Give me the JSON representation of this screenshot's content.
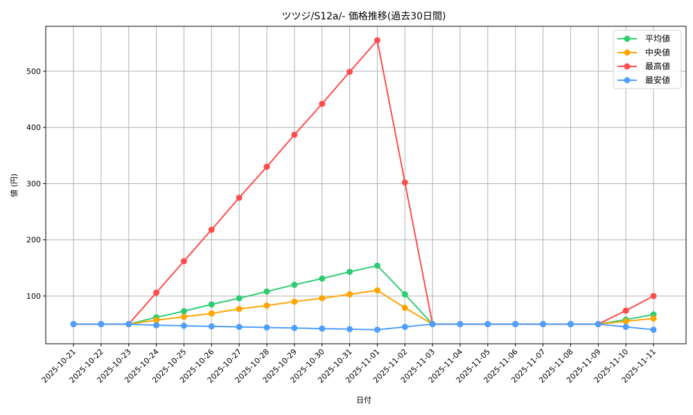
{
  "chart_data": {
    "type": "line",
    "title": "ツツジ/S12a/- 価格推移(過去30日間)",
    "xlabel": "日付",
    "ylabel": "値 (円)",
    "ylim": [
      15,
      580
    ],
    "yticks": [
      100,
      200,
      300,
      400,
      500
    ],
    "grid": true,
    "legend_position": "upper right",
    "categories": [
      "2025-10-21",
      "2025-10-22",
      "2025-10-23",
      "2025-10-24",
      "2025-10-25",
      "2025-10-26",
      "2025-10-27",
      "2025-10-28",
      "2025-10-29",
      "2025-10-30",
      "2025-10-31",
      "2025-11-01",
      "2025-11-02",
      "2025-11-03",
      "2025-11-04",
      "2025-11-05",
      "2025-11-06",
      "2025-11-07",
      "2025-11-08",
      "2025-11-09",
      "2025-11-10",
      "2025-11-11"
    ],
    "series": [
      {
        "name": "平均値",
        "color": "#2ecc71",
        "values": [
          50,
          50,
          50,
          62,
          73,
          85,
          96,
          108,
          120,
          131,
          143,
          154,
          103,
          50,
          50,
          50,
          50,
          50,
          50,
          50,
          58,
          67
        ]
      },
      {
        "name": "中央値",
        "color": "#ffa500",
        "values": [
          50,
          50,
          50,
          57,
          63,
          69,
          77,
          83,
          90,
          96,
          103,
          110,
          79,
          50,
          50,
          50,
          50,
          50,
          50,
          50,
          55,
          60
        ]
      },
      {
        "name": "最高値",
        "color": "#ff4d4d",
        "values": [
          50,
          50,
          50,
          106,
          162,
          218,
          275,
          330,
          387,
          442,
          499,
          555,
          302,
          50,
          50,
          50,
          50,
          50,
          50,
          50,
          74,
          100
        ]
      },
      {
        "name": "最安値",
        "color": "#4d9fff",
        "values": [
          50,
          50,
          50,
          48,
          47,
          46,
          45,
          44,
          43,
          42,
          41,
          40,
          45,
          50,
          50,
          50,
          50,
          50,
          50,
          50,
          45,
          40
        ]
      }
    ]
  }
}
